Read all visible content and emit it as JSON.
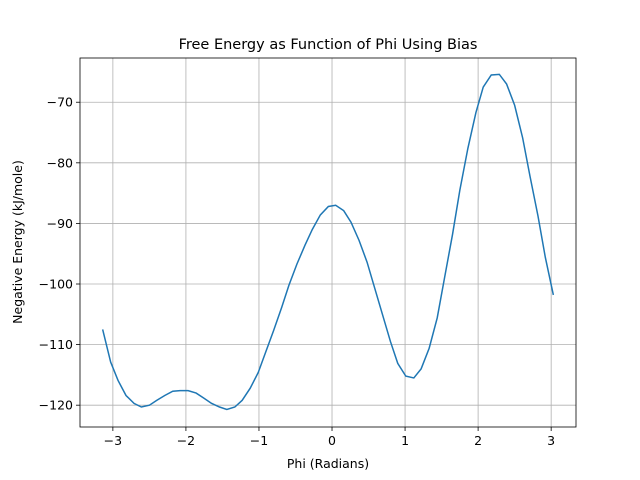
{
  "chart_data": {
    "type": "line",
    "title": "Free Energy as Function of Phi Using Bias",
    "x_label": "Phi (Radians)",
    "y_label": "Negative Energy (kJ/mole)",
    "x": [
      -3.14,
      -3.03,
      -2.93,
      -2.82,
      -2.71,
      -2.61,
      -2.5,
      -2.4,
      -2.29,
      -2.18,
      -2.08,
      -1.97,
      -1.86,
      -1.76,
      -1.65,
      -1.54,
      -1.44,
      -1.33,
      -1.23,
      -1.12,
      -1.01,
      -0.91,
      -0.8,
      -0.69,
      -0.59,
      -0.48,
      -0.37,
      -0.27,
      -0.16,
      -0.05,
      0.05,
      0.16,
      0.26,
      0.37,
      0.48,
      0.58,
      0.69,
      0.8,
      0.9,
      1.01,
      1.12,
      1.22,
      1.33,
      1.44,
      1.54,
      1.65,
      1.75,
      1.86,
      1.97,
      2.07,
      2.18,
      2.29,
      2.39,
      2.5,
      2.61,
      2.71,
      2.82,
      2.92,
      3.03
    ],
    "values": [
      -107.5,
      -112.9,
      -115.9,
      -118.4,
      -119.7,
      -120.3,
      -120.0,
      -119.2,
      -118.4,
      -117.7,
      -117.6,
      -117.6,
      -118.0,
      -118.8,
      -119.7,
      -120.3,
      -120.7,
      -120.3,
      -119.2,
      -117.2,
      -114.6,
      -111.3,
      -107.7,
      -103.9,
      -100.2,
      -96.7,
      -93.6,
      -91.0,
      -88.6,
      -87.2,
      -87.0,
      -87.9,
      -89.8,
      -92.8,
      -96.4,
      -100.5,
      -105.0,
      -109.5,
      -113.1,
      -115.2,
      -115.5,
      -114.0,
      -110.6,
      -105.6,
      -99.0,
      -91.8,
      -84.5,
      -77.6,
      -71.7,
      -67.5,
      -65.5,
      -65.4,
      -67.0,
      -70.5,
      -75.9,
      -82.2,
      -88.8,
      -95.6,
      -101.8
    ],
    "color": "#1f77b4",
    "xlim": [
      -3.45,
      3.34
    ],
    "ylim": [
      -123.6,
      -62.7
    ],
    "xticks": [
      {
        "value": -3,
        "label": "−3"
      },
      {
        "value": -2,
        "label": "−2"
      },
      {
        "value": -1,
        "label": "−1"
      },
      0,
      1,
      2,
      3
    ],
    "yticks": [
      {
        "value": -120,
        "label": "−120"
      },
      {
        "value": -110,
        "label": "−110"
      },
      {
        "value": -100,
        "label": "−100"
      },
      {
        "value": -90,
        "label": "−90"
      },
      {
        "value": -80,
        "label": "−80"
      },
      {
        "value": -70,
        "label": "−70"
      }
    ],
    "grid": true
  }
}
